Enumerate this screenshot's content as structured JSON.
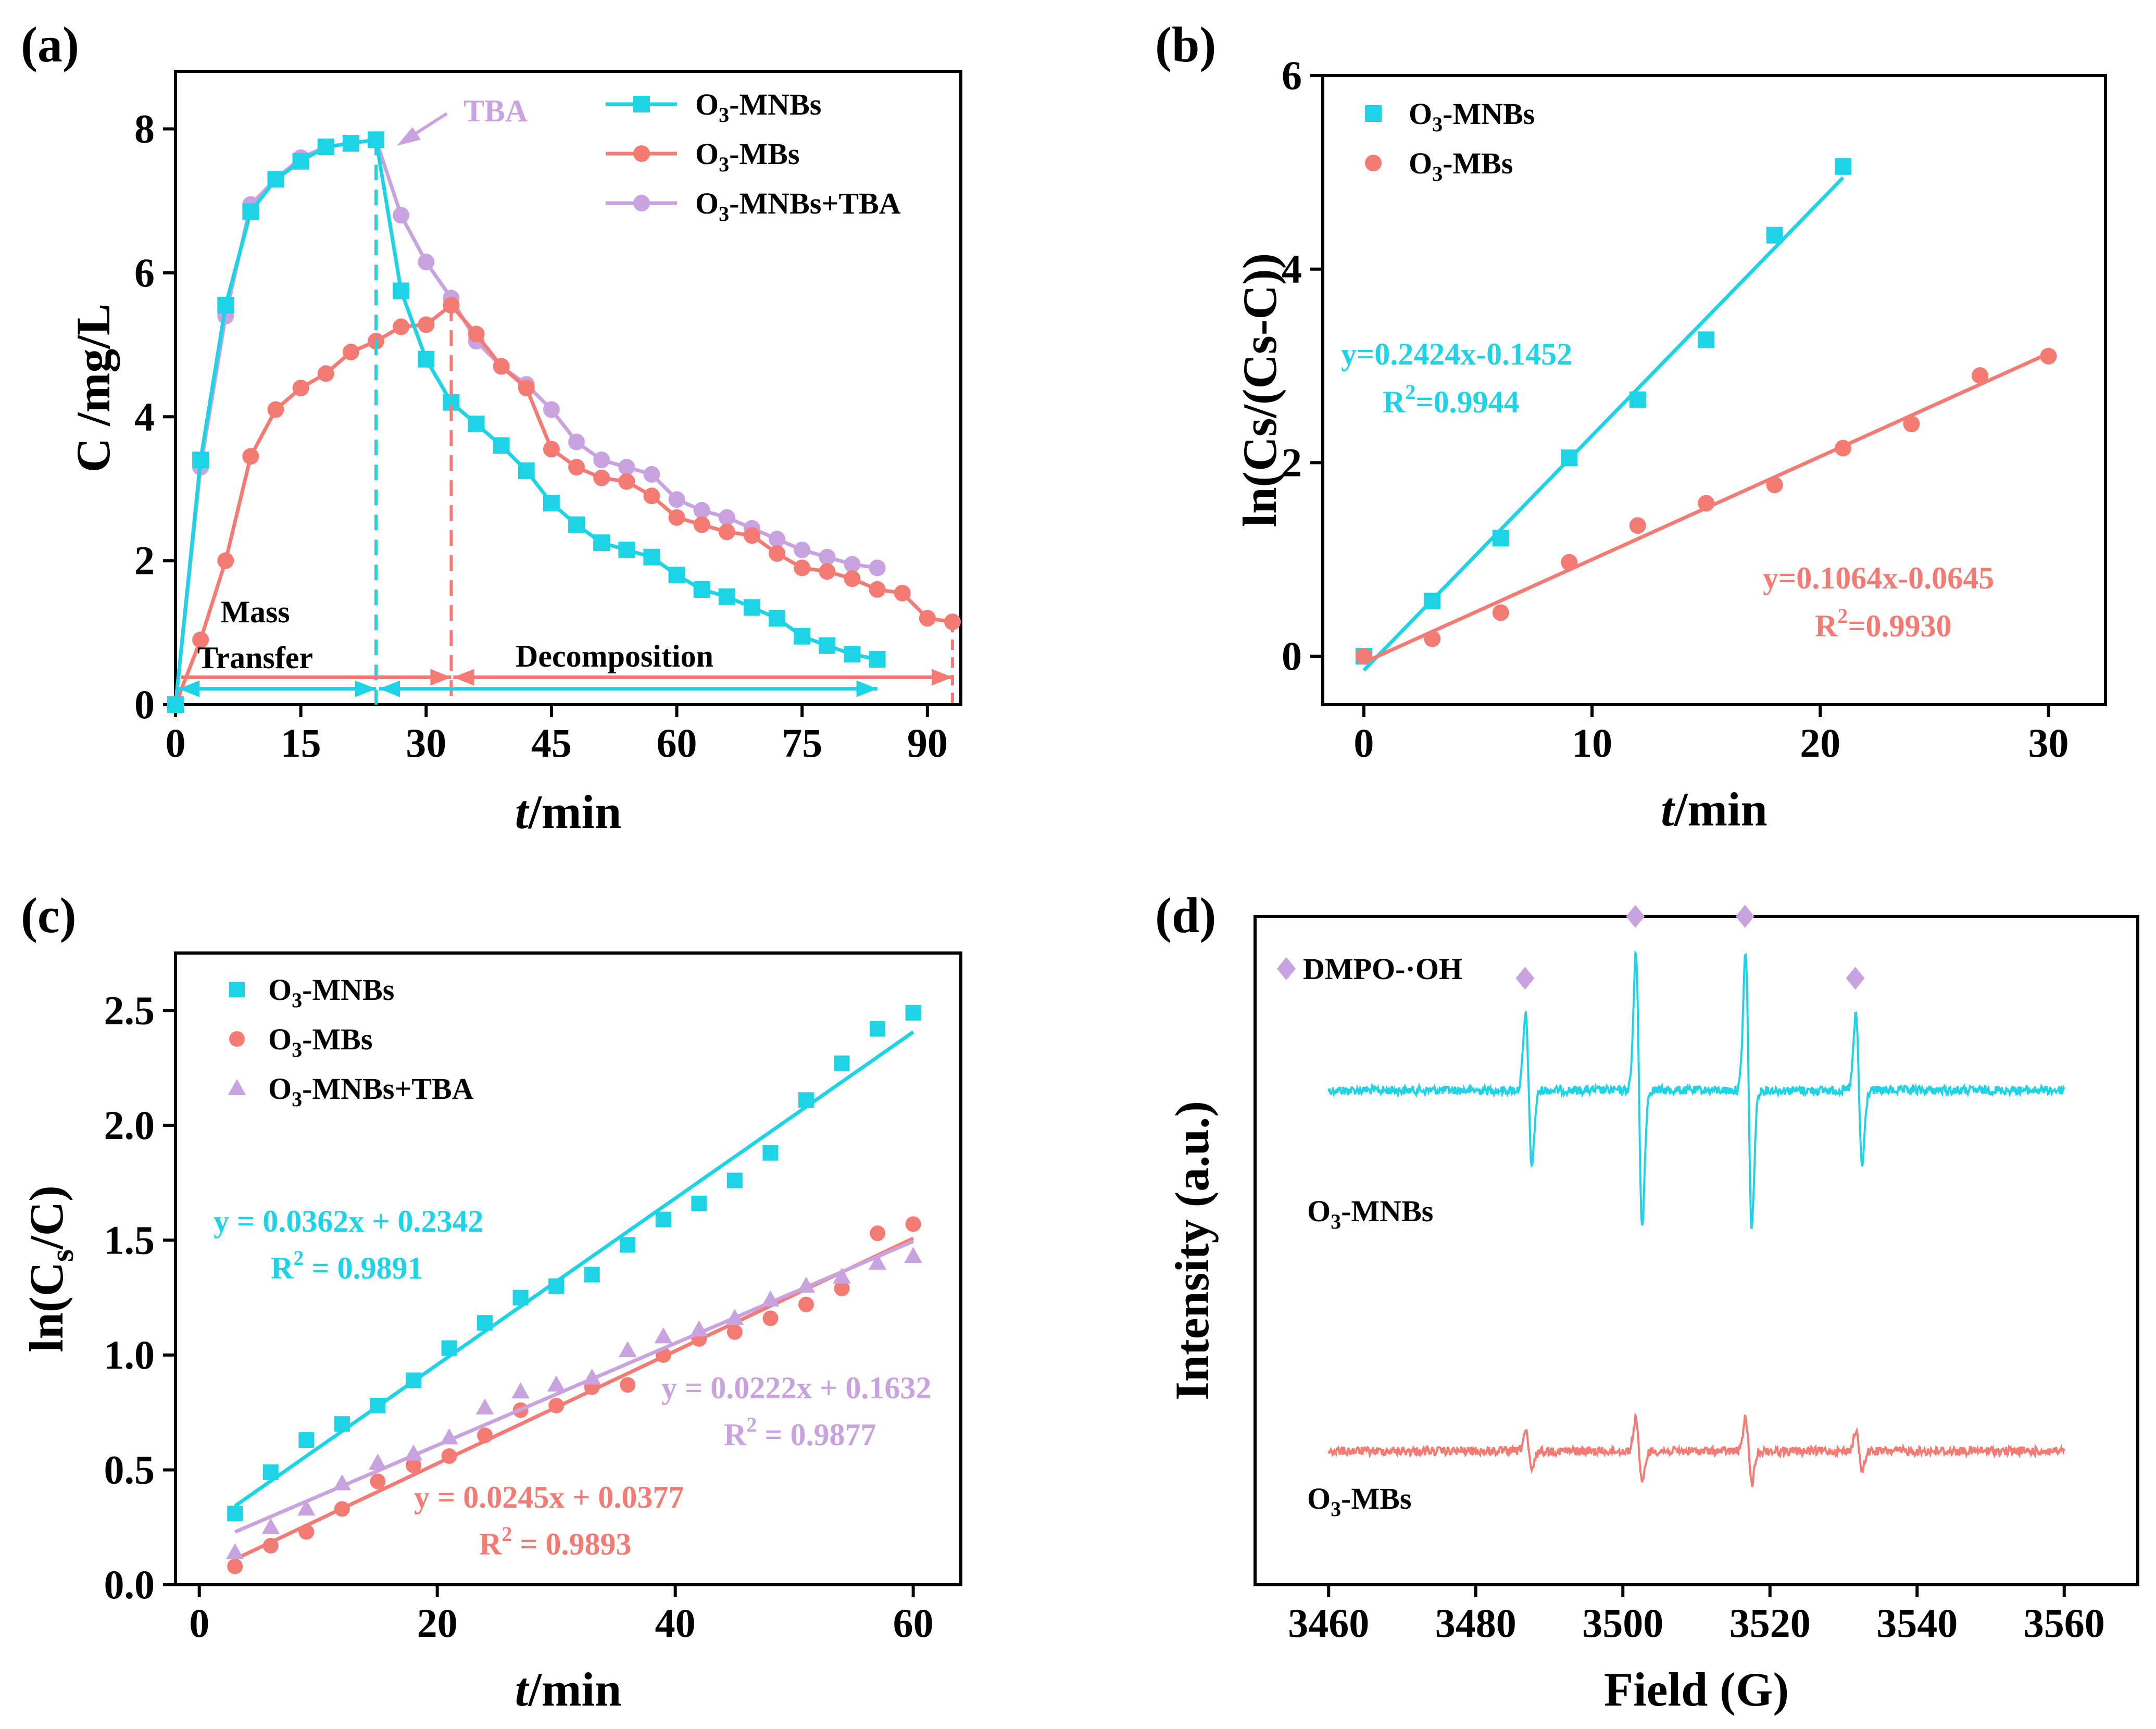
{
  "colors": {
    "cyan": "#1fd3e6",
    "red": "#f47b74",
    "purple": "#c9a2e0",
    "black": "#000000"
  },
  "chart_data": [
    {
      "panel": "(a)",
      "type": "line",
      "xlabel_italic": "t",
      "xlabel_rest": "/min",
      "ylabel": "C /mg/L",
      "xlim": [
        0,
        94
      ],
      "ylim": [
        0,
        8.8
      ],
      "xticks": [
        0,
        15,
        30,
        45,
        60,
        75,
        90
      ],
      "yticks": [
        0,
        2,
        4,
        6,
        8
      ],
      "series": [
        {
          "name": "O3-MNBs",
          "name_main": "O",
          "name_sub": "3",
          "name_rest": "-MNBs",
          "color": "cyan",
          "marker": "square",
          "x": [
            0,
            3,
            6,
            9,
            12,
            15,
            18,
            21,
            24,
            27,
            30,
            33,
            36,
            39,
            42,
            45,
            48,
            51,
            54,
            57,
            60,
            63,
            66,
            69,
            72,
            75,
            78,
            81,
            84
          ],
          "y": [
            0,
            3.4,
            5.55,
            6.85,
            7.3,
            7.55,
            7.75,
            7.8,
            7.85,
            5.75,
            4.8,
            4.2,
            3.9,
            3.6,
            3.25,
            2.8,
            2.5,
            2.25,
            2.15,
            2.05,
            1.8,
            1.6,
            1.5,
            1.35,
            1.2,
            0.95,
            0.82,
            0.7,
            0.63
          ]
        },
        {
          "name": "O3-MBs",
          "name_main": "O",
          "name_sub": "3",
          "name_rest": "-MBs",
          "color": "red",
          "marker": "circle",
          "x": [
            0,
            3,
            6,
            9,
            12,
            15,
            18,
            21,
            24,
            27,
            30,
            33,
            36,
            39,
            42,
            45,
            48,
            51,
            54,
            57,
            60,
            63,
            66,
            69,
            72,
            75,
            78,
            81,
            84,
            87,
            90,
            93
          ],
          "y": [
            0,
            0.9,
            2.0,
            3.45,
            4.1,
            4.4,
            4.6,
            4.9,
            5.05,
            5.25,
            5.28,
            5.55,
            5.15,
            4.7,
            4.4,
            3.55,
            3.3,
            3.15,
            3.1,
            2.9,
            2.6,
            2.5,
            2.4,
            2.35,
            2.1,
            1.9,
            1.85,
            1.75,
            1.6,
            1.55,
            1.2,
            1.15
          ]
        },
        {
          "name": "O3-MNBs+TBA",
          "name_main": "O",
          "name_sub": "3",
          "name_rest": "-MNBs+TBA",
          "color": "purple",
          "marker": "circle",
          "x": [
            0,
            3,
            6,
            9,
            12,
            15,
            18,
            21,
            24,
            27,
            30,
            33,
            36,
            39,
            42,
            45,
            48,
            51,
            54,
            57,
            60,
            63,
            66,
            69,
            72,
            75,
            78,
            81,
            84
          ],
          "y": [
            0,
            3.3,
            5.4,
            6.95,
            7.3,
            7.6,
            7.75,
            7.8,
            7.85,
            6.8,
            6.15,
            5.65,
            5.05,
            4.7,
            4.45,
            4.1,
            3.65,
            3.4,
            3.3,
            3.2,
            2.85,
            2.7,
            2.6,
            2.45,
            2.3,
            2.15,
            2.05,
            1.95,
            1.9
          ]
        }
      ],
      "annotations": {
        "tba": "TBA",
        "mass": "Mass",
        "transfer": "Transfer",
        "decomposition": "Decomposition"
      },
      "markers_x": {
        "mnbs_peak": 24,
        "mbs_peak": 33,
        "mnbs_end": 84,
        "mbs_end": 93
      }
    },
    {
      "panel": "(b)",
      "type": "scatter",
      "xlabel_italic": "t",
      "xlabel_rest": "/min",
      "ylabel": "ln(Cs/(Cs-C))",
      "xlim": [
        -1.8,
        32.5
      ],
      "ylim": [
        -0.5,
        6
      ],
      "xticks": [
        0,
        10,
        20,
        30
      ],
      "yticks": [
        0,
        2,
        4,
        6
      ],
      "series": [
        {
          "name": "O3-MNBs",
          "name_main": "O",
          "name_sub": "3",
          "name_rest": "-MNBs",
          "color": "cyan",
          "marker": "square",
          "x": [
            0,
            3,
            6,
            9,
            12,
            15,
            18,
            21
          ],
          "y": [
            0,
            0.57,
            1.22,
            2.05,
            2.65,
            3.27,
            4.35,
            5.06
          ],
          "fit": {
            "slope": 0.2424,
            "intercept": -0.1452,
            "x0": 0,
            "x1": 21
          },
          "eq": "y=0.2424x-0.1452",
          "r2_main": "R",
          "r2_sup": "2",
          "r2_rest": "=0.9944"
        },
        {
          "name": "O3-MBs",
          "name_main": "O",
          "name_sub": "3",
          "name_rest": "-MBs",
          "color": "red",
          "marker": "circle",
          "x": [
            0,
            3,
            6,
            9,
            12,
            15,
            18,
            21,
            24,
            27,
            30
          ],
          "y": [
            0,
            0.18,
            0.45,
            0.97,
            1.35,
            1.58,
            1.77,
            2.15,
            2.4,
            2.9,
            3.1
          ],
          "fit": {
            "slope": 0.1064,
            "intercept": -0.0645,
            "x0": 0,
            "x1": 30
          },
          "eq": "y=0.1064x-0.0645",
          "r2_main": "R",
          "r2_sup": "2",
          "r2_rest": "=0.9930"
        }
      ]
    },
    {
      "panel": "(c)",
      "type": "scatter",
      "xlabel_italic": "t",
      "xlabel_rest": "/min",
      "ylabel_main": "ln(C",
      "ylabel_sub": "s",
      "ylabel_rest": "/C)",
      "xlim": [
        -2,
        64
      ],
      "ylim": [
        0,
        2.75
      ],
      "xticks": [
        0,
        20,
        40,
        60
      ],
      "yticks": [
        0.0,
        0.5,
        1.0,
        1.5,
        2.0,
        2.5
      ],
      "ytick_labels": [
        "0.0",
        "0.5",
        "1.0",
        "1.5",
        "2.0",
        "2.5"
      ],
      "series": [
        {
          "name": "O3-MNBs",
          "name_main": "O",
          "name_sub": "3",
          "name_rest": "-MNBs",
          "color": "cyan",
          "marker": "square",
          "x": [
            3,
            6,
            9,
            12,
            15,
            18,
            21,
            24,
            27,
            30,
            33,
            36,
            39,
            42,
            45,
            48,
            51,
            54,
            57,
            60
          ],
          "y": [
            0.31,
            0.49,
            0.63,
            0.7,
            0.78,
            0.89,
            1.03,
            1.14,
            1.25,
            1.3,
            1.35,
            1.48,
            1.59,
            1.66,
            1.76,
            1.88,
            2.11,
            2.27,
            2.42,
            2.49
          ],
          "fit": {
            "slope": 0.0362,
            "intercept": 0.2342,
            "x0": 3,
            "x1": 60
          },
          "eq": "y = 0.0362x + 0.2342",
          "r2_main": "R",
          "r2_sup": "2",
          "r2_rest": " = 0.9891"
        },
        {
          "name": "O3-MBs",
          "name_main": "O",
          "name_sub": "3",
          "name_rest": "-MBs",
          "color": "red",
          "marker": "circle",
          "x": [
            3,
            6,
            9,
            12,
            15,
            18,
            21,
            24,
            27,
            30,
            33,
            36,
            39,
            42,
            45,
            48,
            51,
            54,
            57,
            60
          ],
          "y": [
            0.08,
            0.17,
            0.23,
            0.33,
            0.45,
            0.52,
            0.56,
            0.65,
            0.76,
            0.78,
            0.86,
            0.87,
            1.0,
            1.07,
            1.1,
            1.16,
            1.22,
            1.29,
            1.53,
            1.57
          ],
          "fit": {
            "slope": 0.0245,
            "intercept": 0.0377,
            "x0": 3,
            "x1": 60
          },
          "eq": "y = 0.0245x + 0.0377",
          "r2_main": "R",
          "r2_sup": "2",
          "r2_rest": " = 0.9893"
        },
        {
          "name": "O3-MNBs+TBA",
          "name_main": "O",
          "name_sub": "3",
          "name_rest": "-MNBs+TBA",
          "color": "purple",
          "marker": "triangle",
          "x": [
            3,
            6,
            9,
            12,
            15,
            18,
            21,
            24,
            27,
            30,
            33,
            36,
            39,
            42,
            45,
            48,
            51,
            54,
            57,
            60
          ],
          "y": [
            0.14,
            0.25,
            0.33,
            0.44,
            0.53,
            0.57,
            0.64,
            0.77,
            0.84,
            0.87,
            0.9,
            1.02,
            1.08,
            1.11,
            1.16,
            1.24,
            1.3,
            1.34,
            1.4,
            1.43
          ],
          "fit": {
            "slope": 0.0222,
            "intercept": 0.1632,
            "x0": 3,
            "x1": 60
          },
          "eq": "y = 0.0222x + 0.1632",
          "r2_main": "R",
          "r2_sup": "2",
          "r2_rest": " = 0.9877"
        }
      ]
    },
    {
      "panel": "(d)",
      "type": "line",
      "xlabel": "Field (G)",
      "ylabel": "Intensity (a.u.)",
      "xlim": [
        3450,
        3570
      ],
      "xticks": [
        3460,
        3480,
        3500,
        3520,
        3540,
        3560
      ],
      "peak_fields": [
        3487.2,
        3502.2,
        3517.1,
        3532.1
      ],
      "legend": "DMPO-·OH",
      "series": [
        {
          "name": "O3-MNBs",
          "name_main": "O",
          "name_sub": "3",
          "name_rest": "-MNBs",
          "color": "cyan",
          "amplitudes": [
            0.55,
            1.0,
            1.0,
            0.55
          ],
          "offset": 0.66
        },
        {
          "name": "O3-MBs",
          "name_main": "O",
          "name_sub": "3",
          "name_rest": "-MBs",
          "color": "red",
          "amplitudes": [
            0.14,
            0.24,
            0.24,
            0.14
          ],
          "offset": 0.12
        }
      ]
    }
  ]
}
